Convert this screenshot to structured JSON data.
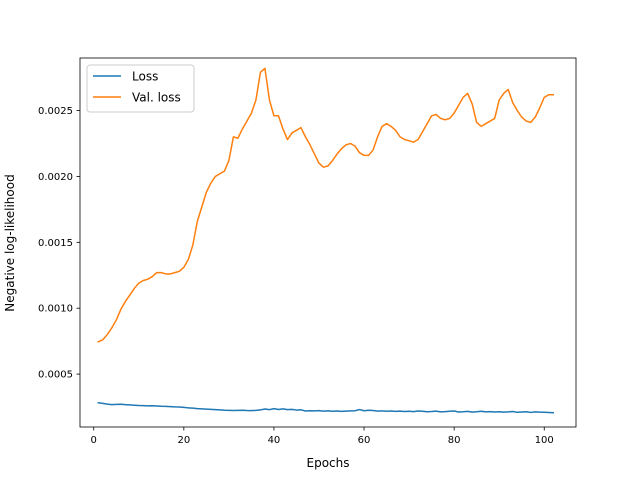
{
  "chart_data": {
    "type": "line",
    "title": "",
    "xlabel": "Epochs",
    "ylabel": "Negative log-likelihood",
    "xlim": [
      -3.05,
      107.05
    ],
    "ylim": [
      9.85e-05,
      0.0028986
    ],
    "x_ticks": [
      0,
      20,
      40,
      60,
      80,
      100
    ],
    "x_tick_labels": [
      "0",
      "20",
      "40",
      "60",
      "80",
      "100"
    ],
    "y_ticks": [
      0.0005,
      0.001,
      0.0015,
      0.002,
      0.0025
    ],
    "y_tick_labels": [
      "0.0005",
      "0.0010",
      "0.0015",
      "0.0020",
      "0.0025"
    ],
    "grid": false,
    "legend_position": "upper-left",
    "x": [
      1,
      2,
      3,
      4,
      5,
      6,
      7,
      8,
      9,
      10,
      11,
      12,
      13,
      14,
      15,
      16,
      17,
      18,
      19,
      20,
      21,
      22,
      23,
      24,
      25,
      26,
      27,
      28,
      29,
      30,
      31,
      32,
      33,
      34,
      35,
      36,
      37,
      38,
      39,
      40,
      41,
      42,
      43,
      44,
      45,
      46,
      47,
      48,
      49,
      50,
      51,
      52,
      53,
      54,
      55,
      56,
      57,
      58,
      59,
      60,
      61,
      62,
      63,
      64,
      65,
      66,
      67,
      68,
      69,
      70,
      71,
      72,
      73,
      74,
      75,
      76,
      77,
      78,
      79,
      80,
      81,
      82,
      83,
      84,
      85,
      86,
      87,
      88,
      89,
      90,
      91,
      92,
      93,
      94,
      95,
      96,
      97,
      98,
      99,
      100,
      101,
      102
    ],
    "series": [
      {
        "name": "Loss",
        "color": "#1f77b4",
        "values": [
          0.000283,
          0.000278,
          0.000272,
          0.000268,
          0.00027,
          0.000271,
          0.000268,
          0.000266,
          0.000264,
          0.000262,
          0.000261,
          0.000259,
          0.00026,
          0.000258,
          0.000256,
          0.000255,
          0.000253,
          0.000251,
          0.00025,
          0.000247,
          0.000244,
          0.000242,
          0.000238,
          0.000236,
          0.000234,
          0.000232,
          0.00023,
          0.000228,
          0.000226,
          0.000225,
          0.000224,
          0.000225,
          0.000226,
          0.000224,
          0.000223,
          0.000225,
          0.000228,
          0.000235,
          0.00023,
          0.000238,
          0.000231,
          0.000236,
          0.00023,
          0.000232,
          0.000227,
          0.000229,
          0.00022,
          0.000222,
          0.000221,
          0.000223,
          0.000219,
          0.000221,
          0.000218,
          0.00022,
          0.000217,
          0.000219,
          0.000221,
          0.000222,
          0.000231,
          0.000222,
          0.000226,
          0.000224,
          0.000219,
          0.000221,
          0.000218,
          0.00022,
          0.000217,
          0.000219,
          0.000216,
          0.000218,
          0.000215,
          0.00022,
          0.000218,
          0.000214,
          0.000216,
          0.000219,
          0.000213,
          0.000215,
          0.000218,
          0.00022,
          0.000212,
          0.000214,
          0.000217,
          0.000211,
          0.000214,
          0.000218,
          0.000213,
          0.000215,
          0.000212,
          0.000214,
          0.000211,
          0.000213,
          0.000216,
          0.00021,
          0.000212,
          0.000214,
          0.000209,
          0.000213,
          0.000211,
          0.00021,
          0.000209,
          0.000207
        ]
      },
      {
        "name": "Val. loss",
        "color": "#ff7f0e",
        "values": [
          0.000745,
          0.00076,
          0.0008,
          0.00085,
          0.00091,
          0.00099,
          0.00105,
          0.0011,
          0.00115,
          0.00119,
          0.00121,
          0.00122,
          0.00124,
          0.00127,
          0.00127,
          0.00126,
          0.00126,
          0.00127,
          0.00128,
          0.00131,
          0.00137,
          0.00148,
          0.00166,
          0.00177,
          0.00188,
          0.00195,
          0.002,
          0.00202,
          0.00204,
          0.00212,
          0.0023,
          0.00229,
          0.00236,
          0.00242,
          0.00248,
          0.00258,
          0.00279,
          0.00282,
          0.00258,
          0.00246,
          0.00246,
          0.00236,
          0.00228,
          0.00233,
          0.00235,
          0.00237,
          0.0023,
          0.00224,
          0.00217,
          0.0021,
          0.00207,
          0.00208,
          0.00212,
          0.00217,
          0.00221,
          0.00224,
          0.00225,
          0.00223,
          0.00218,
          0.00216,
          0.00216,
          0.0022,
          0.0023,
          0.00238,
          0.0024,
          0.00238,
          0.00235,
          0.0023,
          0.00228,
          0.00227,
          0.00226,
          0.00228,
          0.00234,
          0.0024,
          0.00246,
          0.00247,
          0.00244,
          0.00243,
          0.00244,
          0.00248,
          0.00254,
          0.0026,
          0.00263,
          0.00255,
          0.00241,
          0.00238,
          0.0024,
          0.00242,
          0.00244,
          0.00258,
          0.00263,
          0.00266,
          0.00256,
          0.0025,
          0.00245,
          0.00242,
          0.00241,
          0.00245,
          0.00252,
          0.0026,
          0.00262,
          0.00262
        ]
      }
    ]
  }
}
